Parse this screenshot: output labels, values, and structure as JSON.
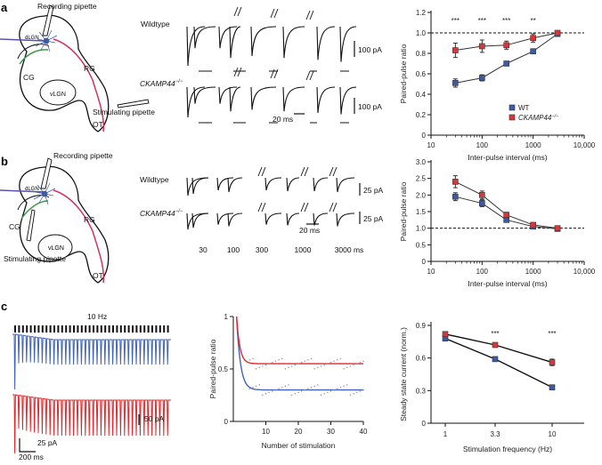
{
  "panels": {
    "a": "a",
    "b": "b",
    "c": "c"
  },
  "schematic": {
    "recording_pipette": "Recording pipette",
    "stimulating_pipette": "Stimulating pipette",
    "dlgn": "dLGN",
    "vlgn": "vLGN",
    "cg": "CG",
    "rg": "RG",
    "ot": "OT"
  },
  "traces": {
    "wildtype": "Wildtype",
    "ckamp_a": "CKAMP44",
    "ckamp_sup": "−/−",
    "scale_a_top": "100 pA",
    "scale_a_bot": "100 pA",
    "scale_a_time": "20 ms",
    "scale_b_top": "25 pA",
    "scale_b_bot": "25 pA",
    "scale_b_time": "20 ms",
    "intervals": [
      "30",
      "100",
      "300",
      "1000",
      "3000 ms"
    ],
    "c_freq": "10 Hz",
    "c_scale1": "50 pA",
    "c_scale2": "25 pA",
    "c_time": "200 ms"
  },
  "colors": {
    "wt": "#3b5ba8",
    "ko": "#d7373a",
    "trace_blue": "#3f63b8",
    "trace_red": "#e0282c",
    "pink": "#d4305f",
    "green": "#3d9a4c"
  },
  "chart_data": [
    {
      "id": "a",
      "type": "line",
      "xscale": "log",
      "xlim": [
        10,
        10000
      ],
      "ylim": [
        0,
        1.2
      ],
      "xticks": [
        "10",
        "100",
        "1000",
        "10,000"
      ],
      "yticks": [
        "0",
        "0.2",
        "0.4",
        "0.6",
        "0.8",
        "1.0",
        "1.2"
      ],
      "xlabel": "Inter-pulse interval (ms)",
      "ylabel": "Paired-pulse ratio",
      "reference_line": 1.0,
      "x": [
        30,
        100,
        300,
        1000,
        3000
      ],
      "series": [
        {
          "name": "WT",
          "values": [
            0.51,
            0.56,
            0.7,
            0.82,
            0.99
          ],
          "err": [
            0.04,
            0.03,
            0.02,
            0.02,
            0.02
          ]
        },
        {
          "name": "CKAMP44",
          "values": [
            0.83,
            0.87,
            0.88,
            0.95,
            1.0
          ],
          "err": [
            0.07,
            0.06,
            0.04,
            0.04,
            0.02
          ]
        }
      ],
      "significance": [
        "***",
        "***",
        "***",
        "**"
      ],
      "sig_x": [
        30,
        100,
        300,
        1000
      ],
      "legend": {
        "wt": "WT",
        "ko": "CKAMP44",
        "ko_sup": "−/−"
      }
    },
    {
      "id": "b",
      "type": "line",
      "xscale": "log",
      "xlim": [
        10,
        10000
      ],
      "ylim": [
        0,
        3.0
      ],
      "xticks": [
        "10",
        "100",
        "1000",
        "10,000"
      ],
      "yticks": [
        "0",
        "0.5",
        "1.0",
        "1.5",
        "2.0",
        "2.5",
        "3.0"
      ],
      "xlabel": "Inter-pulse interval (ms)",
      "ylabel": "Paired-pulse ratio",
      "reference_line": 1.0,
      "x": [
        30,
        100,
        300,
        1000,
        3000
      ],
      "series": [
        {
          "name": "WT",
          "values": [
            1.95,
            1.75,
            1.25,
            1.05,
            0.98
          ],
          "err": [
            0.12,
            0.1,
            0.06,
            0.04,
            0.02
          ]
        },
        {
          "name": "CKAMP44",
          "values": [
            2.4,
            2.0,
            1.4,
            1.1,
            1.0
          ],
          "err": [
            0.18,
            0.12,
            0.08,
            0.05,
            0.03
          ]
        }
      ]
    },
    {
      "id": "c-middle",
      "type": "scatter",
      "xlim": [
        0,
        40
      ],
      "ylim": [
        0,
        1
      ],
      "xticks": [
        "10",
        "20",
        "30",
        "40"
      ],
      "yticks": [
        "0",
        "0.5",
        "1"
      ],
      "xlabel": "Number of stimulation",
      "ylabel": "Paired-pulse ratio",
      "series": [
        {
          "name": "WT",
          "plateau": 0.3,
          "tau": 1.2
        },
        {
          "name": "CKAMP44",
          "plateau": 0.55,
          "tau": 1.0
        }
      ]
    },
    {
      "id": "c-right",
      "type": "line",
      "ylim": [
        0,
        0.9
      ],
      "categories": [
        "1",
        "3.3",
        "10"
      ],
      "yticks": [
        "0",
        "0.3",
        "0.6",
        "0.9"
      ],
      "xlabel": "Stimulation frequency (Hz)",
      "ylabel": "Steady state current (norm.)",
      "series": [
        {
          "name": "WT",
          "values": [
            0.78,
            0.59,
            0.33
          ],
          "err": [
            0.02,
            0.015,
            0.015
          ]
        },
        {
          "name": "CKAMP44",
          "values": [
            0.82,
            0.72,
            0.56
          ],
          "err": [
            0.015,
            0.02,
            0.03
          ]
        }
      ],
      "significance": [
        "",
        "***",
        "***"
      ]
    }
  ]
}
